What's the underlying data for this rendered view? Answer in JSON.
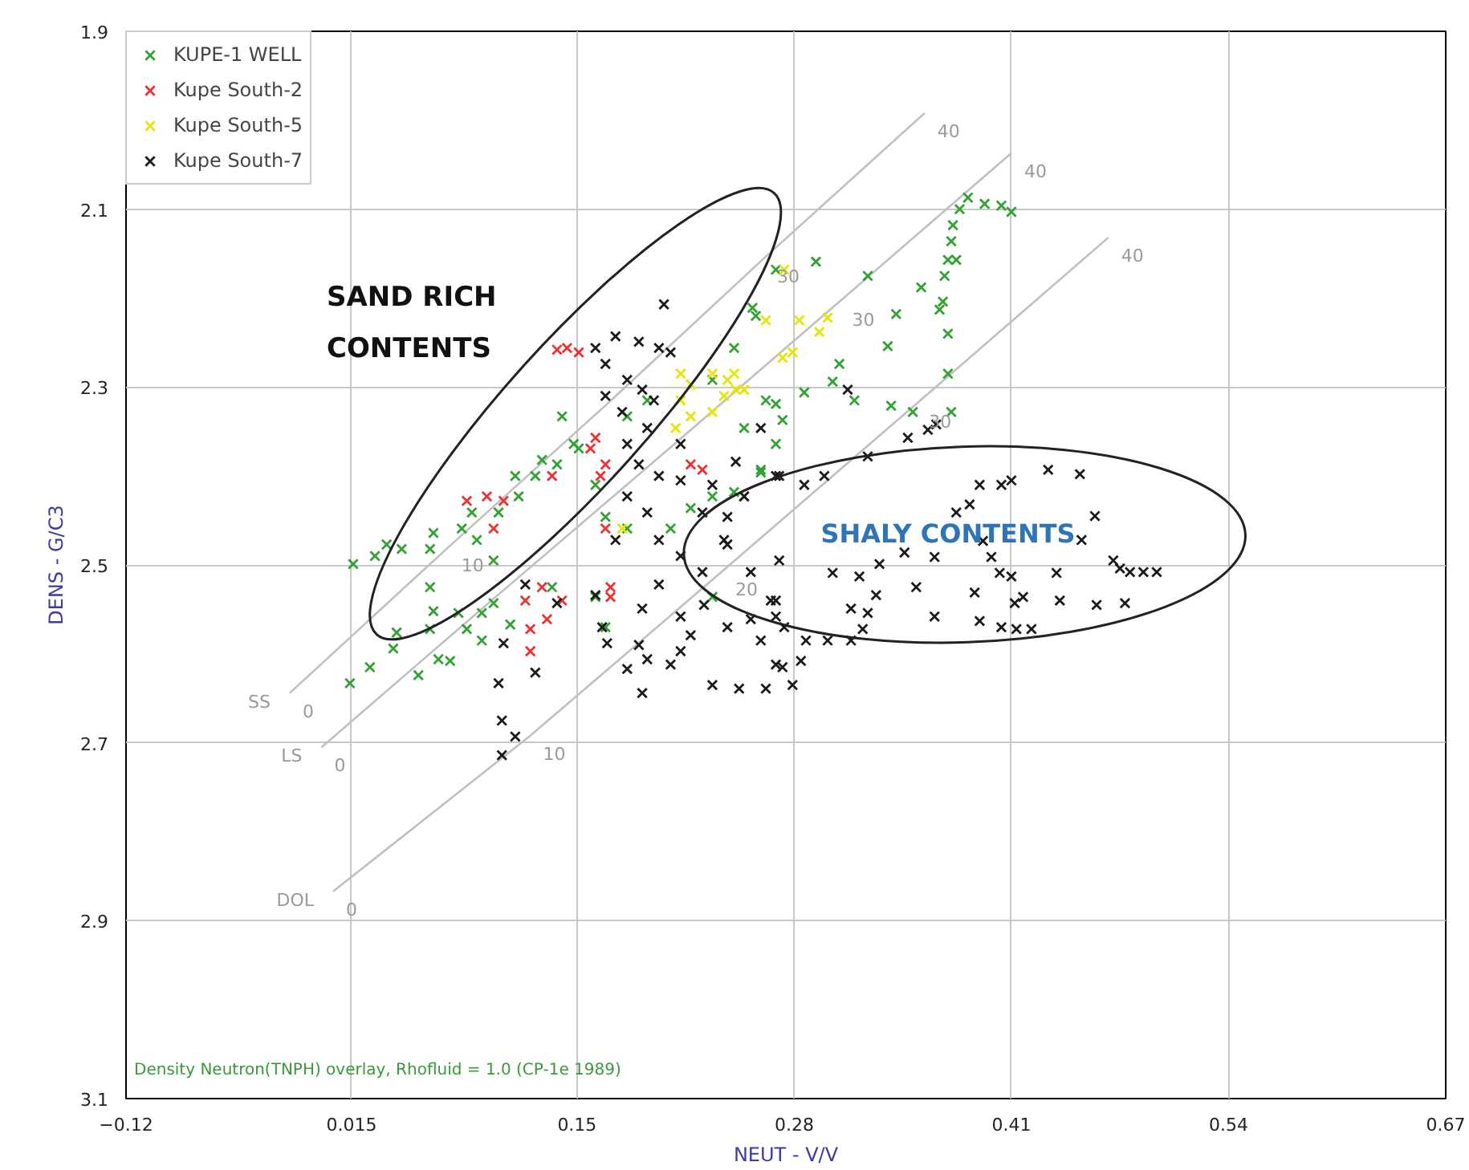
{
  "chart_data": {
    "type": "scatter",
    "xlabel": "NEUT - V/V",
    "ylabel": "DENS - G/C3",
    "xlim": [
      -0.12,
      0.67
    ],
    "ylim": [
      3.1,
      1.9
    ],
    "xticks": [
      -0.12,
      0.015,
      0.15,
      0.28,
      0.41,
      0.54,
      0.67
    ],
    "yticks": [
      1.9,
      2.1,
      2.3,
      2.5,
      2.7,
      2.9,
      3.1
    ],
    "grid": true,
    "legend": "top left",
    "marker": "cross",
    "annotations": [
      "SAND RICH\nCONTENTS",
      "SHALY CONTENTS",
      "Density Neutron(TNPH) overlay, Rhofluid = 1.0 (CP-1e 1989)",
      {
        "text": "0",
        "x": -0.022,
        "y": 2.644
      },
      {
        "text": "10",
        "x": 0.073,
        "y": 2.48
      },
      {
        "text": "30",
        "x": 0.262,
        "y": 2.155
      },
      {
        "text": "40",
        "x": 0.358,
        "y": 1.992
      },
      {
        "text": "0",
        "x": -0.003,
        "y": 2.705
      },
      {
        "text": "30",
        "x": 0.307,
        "y": 2.204
      },
      {
        "text": "40",
        "x": 0.41,
        "y": 2.037
      },
      {
        "text": "0",
        "x": 0.004,
        "y": 2.867
      },
      {
        "text": "10",
        "x": 0.122,
        "y": 2.692
      },
      {
        "text": "20",
        "x": 0.237,
        "y": 2.507
      },
      {
        "text": "30",
        "x": 0.353,
        "y": 2.319
      },
      {
        "text": "40",
        "x": 0.468,
        "y": 2.132
      }
    ],
    "series": [
      {
        "name": "SS",
        "type": "line",
        "marker": "none",
        "color": "#c0c0c0",
        "x": [
          -0.022,
          0.073,
          0.168,
          0.262,
          0.358
        ],
        "values": [
          2.644,
          2.48,
          2.319,
          2.155,
          1.992
        ]
      },
      {
        "name": "LS",
        "type": "line",
        "marker": "none",
        "color": "#c0c0c0",
        "x": [
          -0.003,
          0.1,
          0.204,
          0.307,
          0.41
        ],
        "values": [
          2.705,
          2.538,
          2.371,
          2.204,
          2.037
        ]
      },
      {
        "name": "DOL",
        "type": "line",
        "marker": "none",
        "color": "#c0c0c0",
        "x": [
          0.004,
          0.122,
          0.237,
          0.353,
          0.468
        ],
        "values": [
          2.867,
          2.692,
          2.507,
          2.319,
          2.132
        ]
      },
      {
        "name": "KUPE-1 WELL",
        "color": "#33a133",
        "x": [
          0.384,
          0.394,
          0.404,
          0.41,
          0.379,
          0.375,
          0.374,
          0.372,
          0.377,
          0.37,
          0.293,
          0.269,
          0.324,
          0.356,
          0.369,
          0.367,
          0.341,
          0.372,
          0.336,
          0.307,
          0.303,
          0.286,
          0.316,
          0.372,
          0.338,
          0.374,
          0.351,
          0.269,
          0.273,
          0.26,
          0.25,
          0.255,
          0.141,
          0.148,
          0.138,
          0.129,
          0.125,
          0.113,
          0.115,
          0.103,
          0.087,
          0.081,
          0.064,
          0.062,
          0.045,
          0.036,
          0.029,
          0.016,
          0.09,
          0.1,
          0.161,
          0.167,
          0.18,
          0.206,
          0.218,
          0.231,
          0.244,
          0.26,
          0.269,
          0.25,
          0.263,
          0.257,
          0.244,
          0.231,
          0.18,
          0.192,
          0.014,
          0.026,
          0.04,
          0.042,
          0.062,
          0.064,
          0.055,
          0.067,
          0.074,
          0.079,
          0.084,
          0.093,
          0.1,
          0.11,
          0.093,
          0.135,
          0.161,
          0.167,
          0.231,
          0.062,
          0.151
        ],
        "values": [
          2.087,
          2.094,
          2.096,
          2.103,
          2.1,
          2.118,
          2.136,
          2.157,
          2.157,
          2.175,
          2.159,
          2.168,
          2.175,
          2.188,
          2.204,
          2.213,
          2.218,
          2.24,
          2.254,
          2.274,
          2.294,
          2.306,
          2.315,
          2.285,
          2.321,
          2.328,
          2.328,
          2.319,
          2.337,
          2.396,
          2.423,
          2.211,
          2.333,
          2.364,
          2.387,
          2.382,
          2.4,
          2.4,
          2.423,
          2.441,
          2.441,
          2.459,
          2.464,
          2.482,
          2.482,
          2.477,
          2.49,
          2.499,
          2.472,
          2.495,
          2.41,
          2.446,
          2.459,
          2.459,
          2.436,
          2.423,
          2.418,
          2.393,
          2.364,
          2.346,
          2.315,
          2.22,
          2.256,
          2.292,
          2.333,
          2.315,
          2.633,
          2.615,
          2.594,
          2.576,
          2.572,
          2.552,
          2.624,
          2.606,
          2.608,
          2.554,
          2.572,
          2.585,
          2.543,
          2.567,
          2.554,
          2.525,
          2.536,
          2.57,
          2.536,
          2.525,
          2.369
        ]
      },
      {
        "name": "Kupe South-2",
        "color": "#f03030",
        "x": [
          0.144,
          0.151,
          0.138,
          0.161,
          0.158,
          0.167,
          0.164,
          0.218,
          0.225,
          0.1,
          0.106,
          0.135,
          0.167,
          0.119,
          0.132,
          0.122,
          0.122,
          0.141,
          0.17,
          0.17,
          0.129,
          0.084,
          0.096
        ],
        "values": [
          2.256,
          2.261,
          2.258,
          2.357,
          2.369,
          2.387,
          2.4,
          2.387,
          2.393,
          2.459,
          2.428,
          2.4,
          2.459,
          2.54,
          2.561,
          2.572,
          2.597,
          2.54,
          2.536,
          2.525,
          2.525,
          2.428,
          2.423
        ]
      },
      {
        "name": "Kupe South-5",
        "color": "#e6e600",
        "x": [
          0.212,
          0.218,
          0.231,
          0.244,
          0.238,
          0.212,
          0.218,
          0.209,
          0.231,
          0.25,
          0.263,
          0.273,
          0.274,
          0.283,
          0.3,
          0.295,
          0.279,
          0.24,
          0.245,
          0.177
        ],
        "values": [
          2.285,
          2.297,
          2.285,
          2.285,
          2.31,
          2.315,
          2.333,
          2.346,
          2.328,
          2.303,
          2.225,
          2.267,
          2.168,
          2.225,
          2.222,
          2.238,
          2.261,
          2.292,
          2.303,
          2.459
        ]
      },
      {
        "name": "Kupe South-7",
        "color": "#1a1a1a",
        "x": [
          0.173,
          0.187,
          0.199,
          0.202,
          0.206,
          0.167,
          0.18,
          0.189,
          0.177,
          0.192,
          0.18,
          0.187,
          0.199,
          0.212,
          0.18,
          0.192,
          0.173,
          0.199,
          0.212,
          0.225,
          0.238,
          0.24,
          0.225,
          0.25,
          0.26,
          0.269,
          0.254,
          0.167,
          0.161,
          0.196,
          0.212,
          0.119,
          0.106,
          0.125,
          0.103,
          0.105,
          0.113,
          0.105,
          0.138,
          0.161,
          0.165,
          0.168,
          0.18,
          0.189,
          0.192,
          0.187,
          0.206,
          0.212,
          0.189,
          0.199,
          0.218,
          0.212,
          0.226,
          0.231,
          0.247,
          0.263,
          0.269,
          0.269,
          0.254,
          0.24,
          0.26,
          0.324,
          0.348,
          0.36,
          0.365,
          0.298,
          0.271,
          0.286,
          0.245,
          0.231,
          0.24,
          0.271,
          0.303,
          0.319,
          0.331,
          0.329,
          0.314,
          0.324,
          0.321,
          0.314,
          0.3,
          0.287,
          0.266,
          0.269,
          0.274,
          0.284,
          0.279,
          0.273,
          0.346,
          0.364,
          0.353,
          0.364,
          0.377,
          0.385,
          0.391,
          0.404,
          0.41,
          0.432,
          0.451,
          0.393,
          0.398,
          0.403,
          0.41,
          0.388,
          0.391,
          0.404,
          0.413,
          0.422,
          0.412,
          0.417,
          0.437,
          0.439,
          0.461,
          0.478,
          0.46,
          0.471,
          0.475,
          0.481,
          0.489,
          0.497,
          0.452,
          0.312
        ],
        "values": [
          2.243,
          2.249,
          2.256,
          2.207,
          2.261,
          2.274,
          2.292,
          2.303,
          2.328,
          2.346,
          2.364,
          2.387,
          2.4,
          2.405,
          2.423,
          2.441,
          2.472,
          2.472,
          2.49,
          2.508,
          2.472,
          2.446,
          2.441,
          2.423,
          2.346,
          2.4,
          2.508,
          2.31,
          2.256,
          2.315,
          2.364,
          2.522,
          2.588,
          2.621,
          2.633,
          2.675,
          2.693,
          2.714,
          2.543,
          2.534,
          2.57,
          2.588,
          2.617,
          2.644,
          2.606,
          2.59,
          2.612,
          2.597,
          2.549,
          2.522,
          2.579,
          2.558,
          2.545,
          2.635,
          2.639,
          2.639,
          2.54,
          2.612,
          2.561,
          2.57,
          2.585,
          2.378,
          2.357,
          2.348,
          2.342,
          2.4,
          2.4,
          2.41,
          2.384,
          2.41,
          2.477,
          2.495,
          2.509,
          2.513,
          2.499,
          2.534,
          2.549,
          2.554,
          2.572,
          2.585,
          2.585,
          2.585,
          2.54,
          2.558,
          2.57,
          2.608,
          2.635,
          2.615,
          2.486,
          2.491,
          2.525,
          2.558,
          2.441,
          2.432,
          2.41,
          2.41,
          2.405,
          2.393,
          2.398,
          2.473,
          2.491,
          2.509,
          2.513,
          2.531,
          2.563,
          2.57,
          2.572,
          2.572,
          2.543,
          2.536,
          2.509,
          2.54,
          2.545,
          2.543,
          2.445,
          2.495,
          2.504,
          2.508,
          2.508,
          2.508,
          2.472,
          2.303
        ]
      }
    ]
  }
}
